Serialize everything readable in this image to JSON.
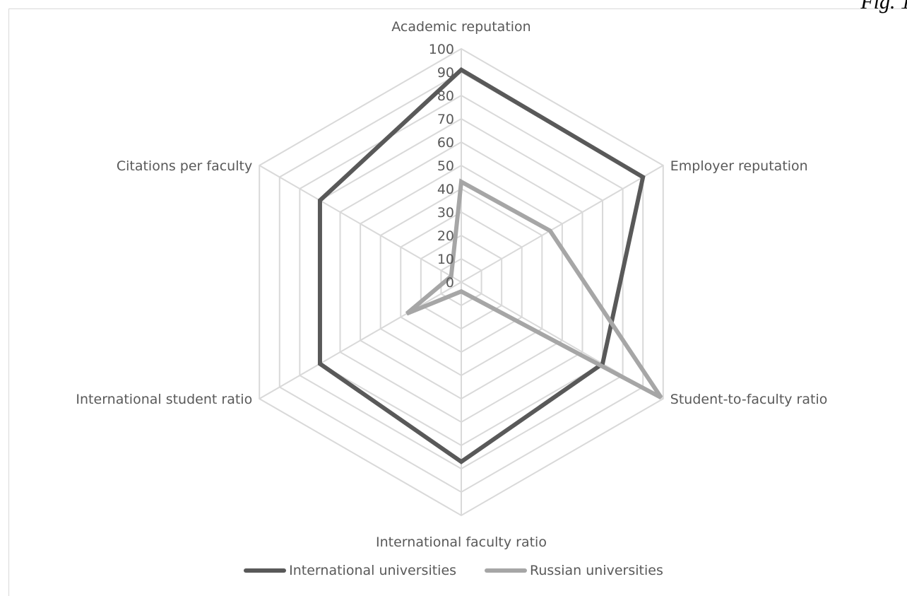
{
  "figure": {
    "label": "Fig. 1"
  },
  "colors": {
    "international": "#595959",
    "russian": "#a6a6a6",
    "grid": "#d9d9d9",
    "text": "#595959"
  },
  "chart_data": {
    "type": "radar",
    "title": "",
    "categories": [
      "Academic reputation",
      "Employer reputation",
      "Student-to-faculty ratio",
      "International faculty ratio",
      "International student ratio",
      "Citations per faculty"
    ],
    "r_ticks": [
      "0",
      "10",
      "20",
      "30",
      "40",
      "50",
      "60",
      "70",
      "80",
      "90",
      "100"
    ],
    "rlim": [
      0,
      100
    ],
    "grid": true,
    "legend_position": "bottom",
    "series": [
      {
        "name": "International universities",
        "values": [
          91,
          90,
          70,
          77,
          70,
          70
        ]
      },
      {
        "name": "Russian universities",
        "values": [
          43,
          44,
          99,
          4,
          27,
          5
        ]
      }
    ]
  }
}
